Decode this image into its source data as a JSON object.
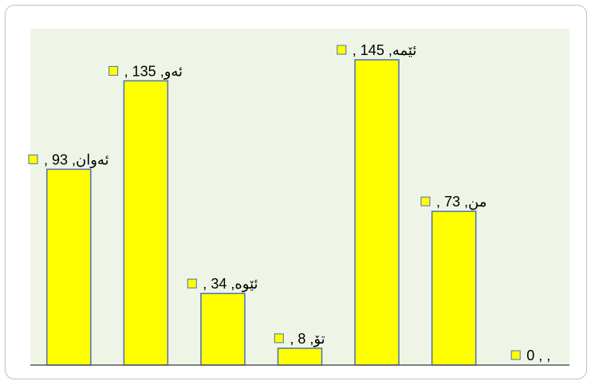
{
  "chart_data": {
    "type": "bar",
    "categories": [
      "ئەوان",
      "ئەو",
      "ئێوە",
      "تۆ",
      "ئێمە",
      "من",
      ""
    ],
    "values": [
      93,
      135,
      34,
      8,
      145,
      73,
      0
    ],
    "data_labels": [
      "ئەوان, 93 ,",
      "ئەو, 135 ,",
      "ئێوە, 34 ,",
      "تۆ, 8 ,",
      "ئێمە, 145 ,",
      "من, 73 ,",
      ", , 0"
    ],
    "title": "",
    "xlabel": "",
    "ylabel": "",
    "ylim": [
      0,
      160
    ],
    "grid": false,
    "legend": "none",
    "colors": {
      "bar_fill": "#FFFF00",
      "bar_stroke": "#4F6EB5",
      "plot_bg": "#EEF5E6",
      "axis": "#595959",
      "legend_key_fill": "#FFFF00",
      "legend_key_stroke": "#4F6EB5"
    }
  }
}
